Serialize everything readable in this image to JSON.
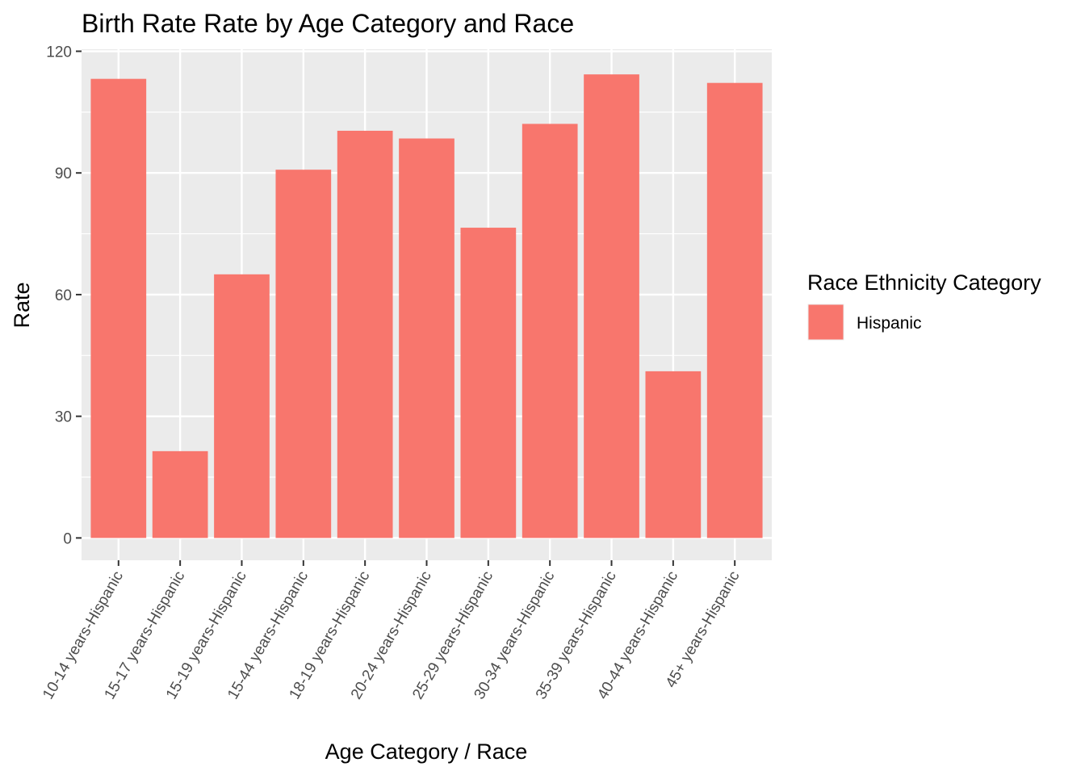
{
  "chart_data": {
    "type": "bar",
    "title": "Birth Rate Rate by Age Category and Race",
    "xlabel": "Age Category / Race",
    "ylabel": "Rate",
    "categories": [
      "10-14 years-Hispanic",
      "15-17 years-Hispanic",
      "15-19 years-Hispanic",
      "15-44 years-Hispanic",
      "18-19 years-Hispanic",
      "20-24 years-Hispanic",
      "25-29 years-Hispanic",
      "30-34 years-Hispanic",
      "35-39 years-Hispanic",
      "40-44 years-Hispanic",
      "45+ years-Hispanic"
    ],
    "series": [
      {
        "name": "Hispanic",
        "color": "#F8766D",
        "values": [
          113.2,
          21.4,
          65.0,
          90.8,
          100.4,
          98.5,
          76.5,
          102.1,
          114.3,
          41.1,
          112.2
        ]
      }
    ],
    "ylim": [
      -5.5,
      120.5
    ],
    "yticks": [
      0,
      30,
      60,
      90,
      120
    ],
    "grid": true,
    "panel_background": "#EBEBEB",
    "legend": {
      "title": "Race Ethnicity Category",
      "position": "right"
    }
  }
}
